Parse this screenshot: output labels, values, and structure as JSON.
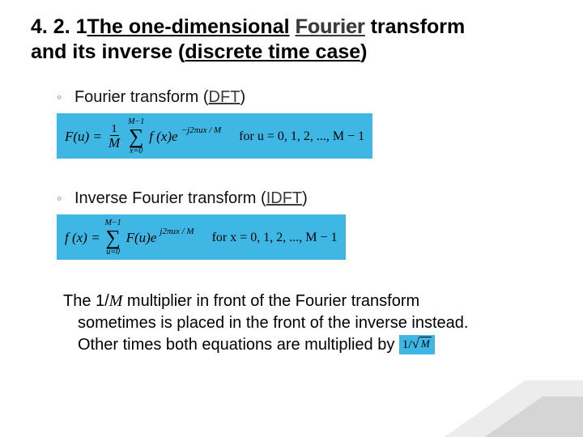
{
  "title": {
    "section_num": "4. 2. 1",
    "part1": "The one-dimensional",
    "fourier": "Fourier",
    "transform": "transform",
    "line2a": "and its inverse (",
    "discrete": "discrete time case",
    "line2b": ")"
  },
  "bullets": {
    "b1_pre": "Fourier transform (",
    "b1_abbr": "DFT",
    "b1_post": ")",
    "b2_pre": "Inverse Fourier transform (",
    "b2_abbr": "IDFT",
    "b2_post": ")"
  },
  "formula1": {
    "lhs": "F(u) =",
    "frac_num": "1",
    "frac_den": "M",
    "sum_top": "M−1",
    "sum_bot": "x=0",
    "body": "f (x)e",
    "exp": "−j2πux / M",
    "for": "for u = 0, 1, 2, ..., M − 1",
    "bg": "#3eb7e4"
  },
  "formula2": {
    "lhs": "f (x) =",
    "sum_top": "M−1",
    "sum_bot": "u=0",
    "body": "F(u)e",
    "exp": "j2πux / M",
    "for": "for x = 0, 1, 2, ..., M − 1",
    "bg": "#3eb7e4"
  },
  "footnote": {
    "line1_a": "The 1/",
    "line1_M": "M",
    "line1_b": " multiplier in front of the Fourier transform",
    "line2": "sometimes is placed in the front of the inverse instead.",
    "line3": "Other times both equations are multiplied by",
    "inline_pre": "1/",
    "inline_rad": "M",
    "inline_bg": "#3eb7e4"
  }
}
